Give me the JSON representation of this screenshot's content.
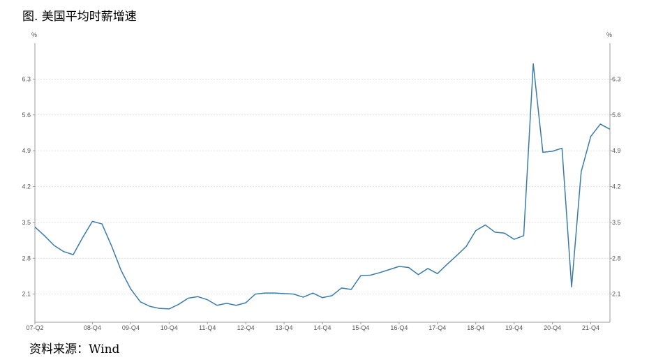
{
  "figure": {
    "title": "图. 美国平均时薪增速",
    "source": "资料来源：Wind"
  },
  "chart_data": {
    "type": "line",
    "title": "美国平均时薪增速",
    "xlabel": "",
    "ylabel": "%",
    "y2label": "%",
    "grid": true,
    "legend": "none",
    "colors": {
      "line": "#3a7bab",
      "grid": "#d9d9d9",
      "axis": "#999999"
    },
    "ylim": [
      1.55,
      7.0
    ],
    "yticks": [
      2.1,
      2.8,
      3.5,
      4.2,
      4.9,
      5.6,
      6.3
    ],
    "ytick_labels": [
      "2.1",
      "2.8",
      "3.5",
      "4.2",
      "4.9",
      "5.6",
      "6.3"
    ],
    "xtick_labels": [
      "07-Q2",
      "08-Q4",
      "09-Q4",
      "10-Q4",
      "11-Q4",
      "12-Q4",
      "13-Q4",
      "14-Q4",
      "15-Q4",
      "16-Q4",
      "17-Q4",
      "18-Q4",
      "19-Q4",
      "20-Q4",
      "21-Q4"
    ],
    "xtick_index": [
      0,
      6,
      10,
      14,
      18,
      22,
      26,
      30,
      34,
      38,
      42,
      46,
      50,
      54,
      58
    ],
    "series": [
      {
        "values": [
          3.41,
          3.24,
          3.05,
          2.93,
          2.87,
          3.21,
          3.52,
          3.47,
          3.04,
          2.56,
          2.2,
          1.95,
          1.86,
          1.82,
          1.81,
          1.9,
          2.02,
          2.05,
          1.99,
          1.88,
          1.92,
          1.88,
          1.93,
          2.1,
          2.12,
          2.12,
          2.11,
          2.1,
          2.04,
          2.12,
          2.03,
          2.07,
          2.22,
          2.19,
          2.46,
          2.47,
          2.52,
          2.58,
          2.64,
          2.62,
          2.48,
          2.6,
          2.5,
          2.68,
          2.85,
          3.03,
          3.34,
          3.45,
          3.31,
          3.29,
          3.17,
          3.24,
          6.6,
          4.87,
          4.89,
          4.95,
          2.24,
          4.49,
          5.18,
          5.42,
          5.32
        ]
      }
    ]
  }
}
